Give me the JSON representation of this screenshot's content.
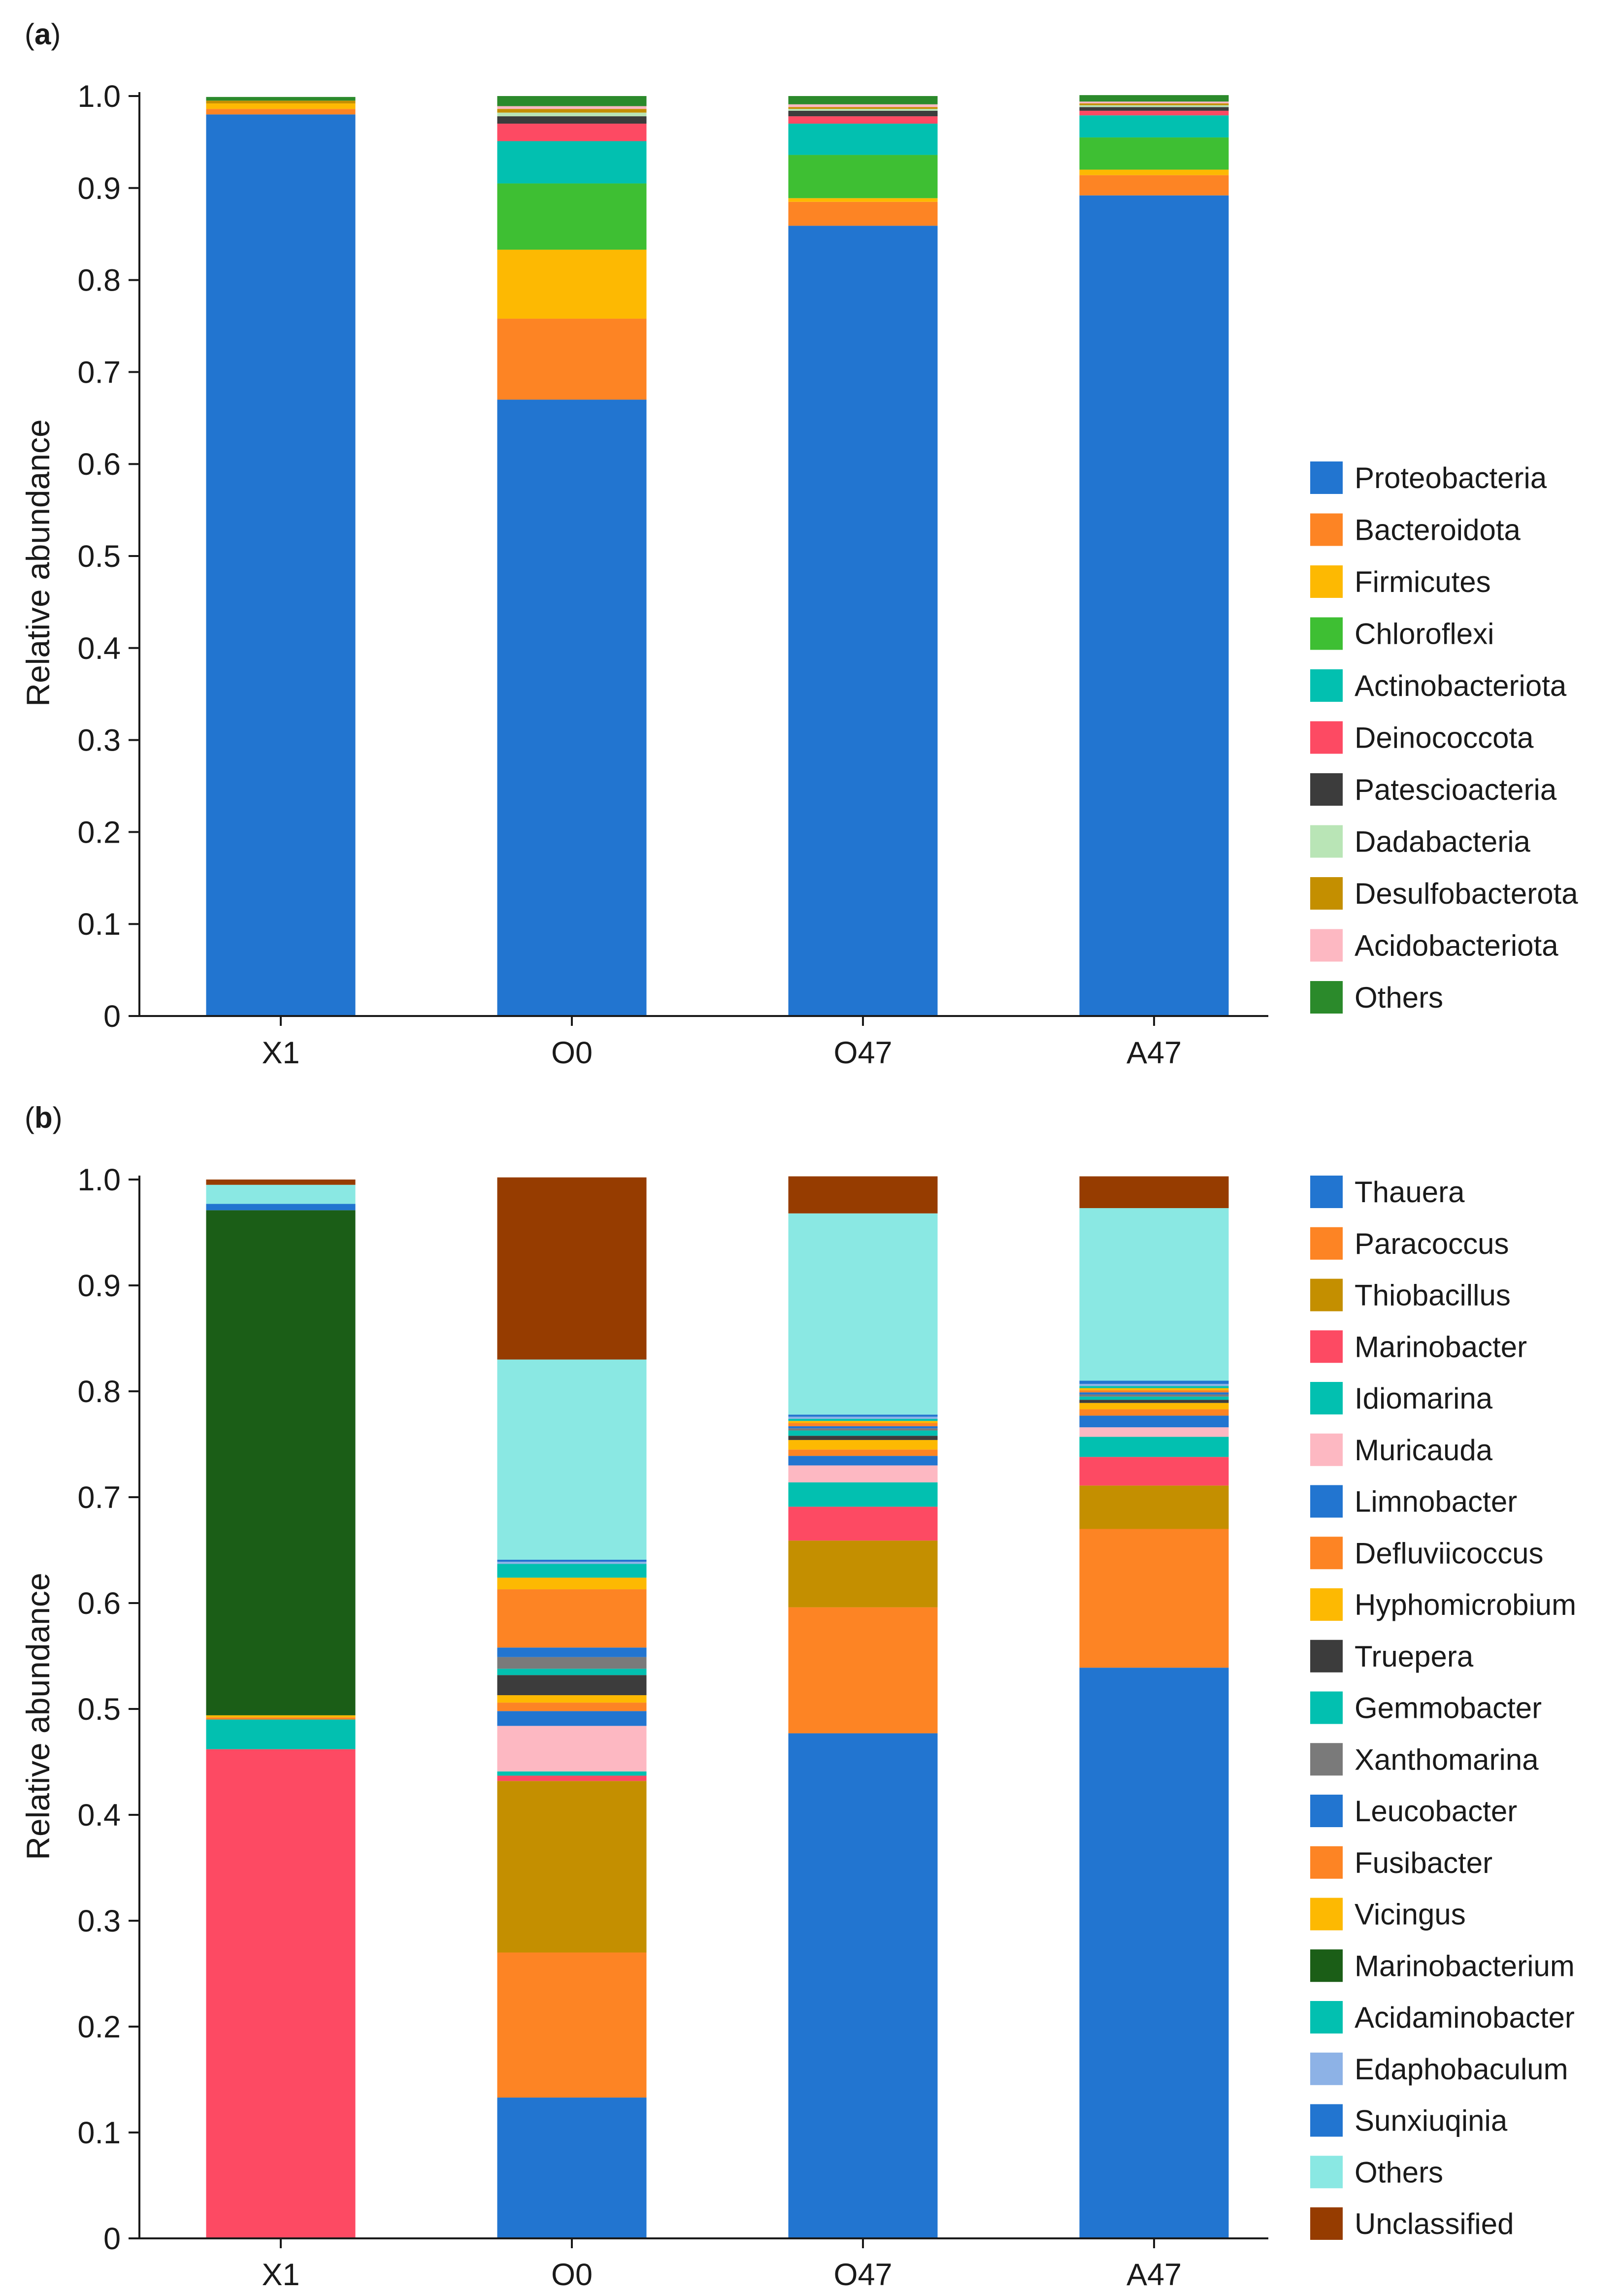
{
  "colors": {
    "blue": "#2275d0",
    "orange": "#fd8424",
    "yellow": "#fdb902",
    "green": "#3ebf33",
    "teal": "#02c0b0",
    "red": "#fd4a63",
    "dark": "#3c3c3c",
    "lightgreen": "#b9e5b6",
    "gold": "#c48f00",
    "pink": "#fdb8c2",
    "darkgreen": "#2b8a2b",
    "gray": "#7a7a7a",
    "forest": "#1b5e17",
    "lightblue": "#8db2e6",
    "cyan": "#8ae8e3",
    "brown": "#963c00"
  },
  "chart_data": [
    {
      "type": "bar",
      "stacked": true,
      "panel_label": "(a)",
      "panel_letter": "a",
      "title": "",
      "xlabel": "",
      "ylabel": "Relative abundance",
      "ylim": [
        0,
        1.0
      ],
      "yticks": [
        "0",
        "0.1",
        "0.2",
        "0.3",
        "0.4",
        "0.5",
        "0.6",
        "0.7",
        "0.8",
        "0.9",
        "1.0"
      ],
      "categories": [
        "X1",
        "O0",
        "O47",
        "A47"
      ],
      "series": [
        {
          "name": "Proteobacteria",
          "color": "#2275d0",
          "values": [
            0.98,
            0.67,
            0.859,
            0.892
          ]
        },
        {
          "name": "Bacteroidota",
          "color": "#fd8424",
          "values": [
            0.006,
            0.088,
            0.026,
            0.022
          ]
        },
        {
          "name": "Firmicutes",
          "color": "#fdb902",
          "values": [
            0.006,
            0.075,
            0.004,
            0.006
          ]
        },
        {
          "name": "Chloroflexi",
          "color": "#3ebf33",
          "values": [
            0.0,
            0.072,
            0.047,
            0.035
          ]
        },
        {
          "name": "Actinobacteriota",
          "color": "#02c0b0",
          "values": [
            0.0,
            0.046,
            0.034,
            0.024
          ]
        },
        {
          "name": "Deinococcota",
          "color": "#fd4a63",
          "values": [
            0.0,
            0.019,
            0.008,
            0.005
          ]
        },
        {
          "name": "Patescioacteria",
          "color": "#3c3c3c",
          "values": [
            0.0,
            0.008,
            0.006,
            0.004
          ]
        },
        {
          "name": "Dadabacteria",
          "color": "#b9e5b6",
          "values": [
            0.0,
            0.004,
            0.002,
            0.002
          ]
        },
        {
          "name": "Desulfobacterota",
          "color": "#c48f00",
          "values": [
            0.003,
            0.004,
            0.002,
            0.002
          ]
        },
        {
          "name": "Acidobacteriota",
          "color": "#fdb8c2",
          "values": [
            0.0,
            0.003,
            0.003,
            0.002
          ]
        },
        {
          "name": "Others",
          "color": "#2b8a2b",
          "values": [
            0.004,
            0.011,
            0.009,
            0.007
          ]
        }
      ]
    },
    {
      "type": "bar",
      "stacked": true,
      "panel_label": "(b)",
      "panel_letter": "b",
      "title": "",
      "xlabel": "",
      "ylabel": "Relative abundance",
      "ylim": [
        0,
        1.0
      ],
      "yticks": [
        "0",
        "0.1",
        "0.2",
        "0.3",
        "0.4",
        "0.5",
        "0.6",
        "0.7",
        "0.8",
        "0.9",
        "1.0"
      ],
      "categories": [
        "X1",
        "O0",
        "O47",
        "A47"
      ],
      "series": [
        {
          "name": "Thauera",
          "color": "#2275d0",
          "values": [
            0.0,
            0.133,
            0.477,
            0.539
          ]
        },
        {
          "name": "Paracoccus",
          "color": "#fd8424",
          "values": [
            0.0,
            0.137,
            0.119,
            0.131
          ]
        },
        {
          "name": "Thiobacillus",
          "color": "#c48f00",
          "values": [
            0.0,
            0.162,
            0.063,
            0.041
          ]
        },
        {
          "name": "Marinobacter",
          "color": "#fd4a63",
          "values": [
            0.462,
            0.005,
            0.032,
            0.027
          ]
        },
        {
          "name": "Idiomarina",
          "color": "#02c0b0",
          "values": [
            0.028,
            0.004,
            0.023,
            0.019
          ]
        },
        {
          "name": "Muricauda",
          "color": "#fdb8c2",
          "values": [
            0.0,
            0.043,
            0.016,
            0.009
          ]
        },
        {
          "name": "Limnobacter",
          "color": "#2275d0",
          "values": [
            0.0,
            0.014,
            0.009,
            0.011
          ]
        },
        {
          "name": "Defluviicoccus",
          "color": "#fd8424",
          "values": [
            0.0,
            0.008,
            0.006,
            0.006
          ]
        },
        {
          "name": "Hyphomicrobium",
          "color": "#fdb902",
          "values": [
            0.0,
            0.007,
            0.009,
            0.006
          ]
        },
        {
          "name": "Truepera",
          "color": "#3c3c3c",
          "values": [
            0.0,
            0.019,
            0.004,
            0.003
          ]
        },
        {
          "name": "Gemmobacter",
          "color": "#02c0b0",
          "values": [
            0.0,
            0.006,
            0.005,
            0.003
          ]
        },
        {
          "name": "Xanthomarina",
          "color": "#7a7a7a",
          "values": [
            0.0,
            0.011,
            0.002,
            0.002
          ]
        },
        {
          "name": "Leucobacter",
          "color": "#2275d0",
          "values": [
            0.0,
            0.009,
            0.002,
            0.002
          ]
        },
        {
          "name": "Fusibacter",
          "color": "#fd8424",
          "values": [
            0.002,
            0.055,
            0.003,
            0.002
          ]
        },
        {
          "name": "Vicingus",
          "color": "#fdb902",
          "values": [
            0.002,
            0.011,
            0.002,
            0.002
          ]
        },
        {
          "name": "Marinobacterium",
          "color": "#1b5e17",
          "values": [
            0.477,
            0.0,
            0.0,
            0.0
          ]
        },
        {
          "name": "Acidaminobacter",
          "color": "#02c0b0",
          "values": [
            0.0,
            0.013,
            0.002,
            0.002
          ]
        },
        {
          "name": "Edaphobaculum",
          "color": "#8db2e6",
          "values": [
            0.0,
            0.002,
            0.002,
            0.002
          ]
        },
        {
          "name": "Sunxiuqinia",
          "color": "#2275d0",
          "values": [
            0.006,
            0.002,
            0.002,
            0.003
          ]
        },
        {
          "name": "Others",
          "color": "#8ae8e3",
          "values": [
            0.018,
            0.189,
            0.19,
            0.163
          ]
        },
        {
          "name": "Unclassified",
          "color": "#963c00",
          "values": [
            0.005,
            0.172,
            0.035,
            0.03
          ]
        }
      ]
    }
  ]
}
